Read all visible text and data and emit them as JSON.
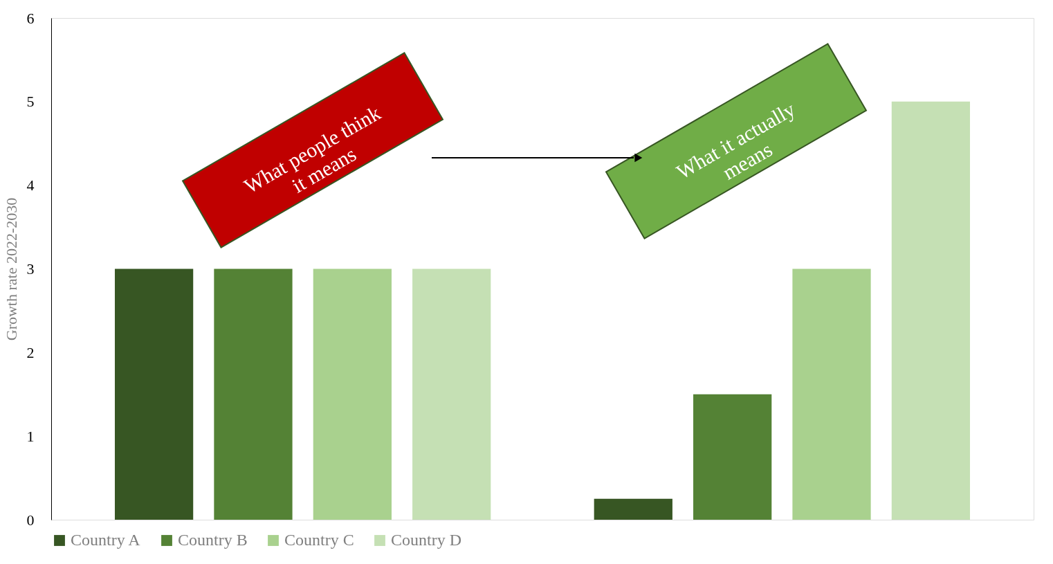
{
  "chart_data": {
    "type": "bar",
    "ylabel": "Growth rate 2022-2030",
    "categories": [
      null,
      null
    ],
    "series": [
      {
        "name": "Country A",
        "color": "#375623",
        "values": [
          3,
          0.25
        ]
      },
      {
        "name": "Country B",
        "color": "#548235",
        "values": [
          3,
          1.5
        ]
      },
      {
        "name": "Country C",
        "color": "#a9d18e",
        "values": [
          3,
          3
        ]
      },
      {
        "name": "Country D",
        "color": "#c5e0b4",
        "values": [
          3,
          5
        ]
      }
    ],
    "ylim": [
      0,
      6
    ],
    "yticks": [
      0,
      1,
      2,
      3,
      4,
      5,
      6
    ],
    "grid": false,
    "legend": "bottom",
    "tick_labels": "y",
    "annotations": [
      "What people think it means",
      "What it actually means"
    ]
  }
}
